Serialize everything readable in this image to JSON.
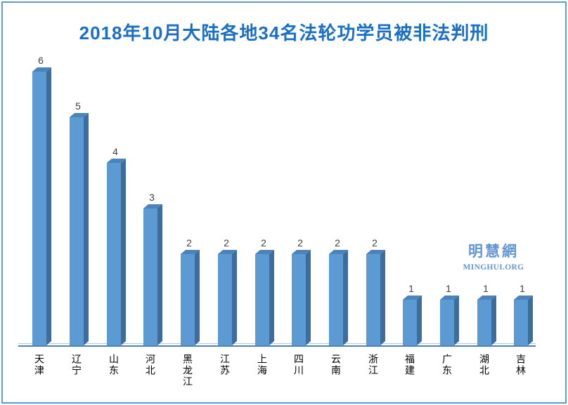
{
  "colors": {
    "title": "#1a6ec4",
    "border": "#5b9ad3",
    "bar_front": "#5b9ad3",
    "bar_side": "#3e6d9c",
    "bar_top": "#4b83ba",
    "axis": "#4d82c0",
    "axis_light": "#b3c9e8",
    "value_label": "#3f3f3f",
    "watermark": "#6496d2"
  },
  "watermark": {
    "cn": "明慧網",
    "en": "MINGHUI.ORG"
  },
  "chart_data": {
    "type": "bar",
    "style": "3d-column",
    "title": "2018年10月大陆各地34名法轮功学员被非法判刑",
    "categories": [
      "天津",
      "辽宁",
      "山东",
      "河北",
      "黑龙江",
      "江苏",
      "上海",
      "四川",
      "云南",
      "浙江",
      "福建",
      "广东",
      "湖北",
      "吉林"
    ],
    "values": [
      6,
      5,
      4,
      3,
      2,
      2,
      2,
      2,
      2,
      2,
      1,
      1,
      1,
      1
    ],
    "xlabel": "",
    "ylabel": "",
    "ylim": [
      0,
      6
    ],
    "grid": false,
    "legend": false,
    "data_labels": true,
    "x_axis_label_orientation": "vertical"
  }
}
